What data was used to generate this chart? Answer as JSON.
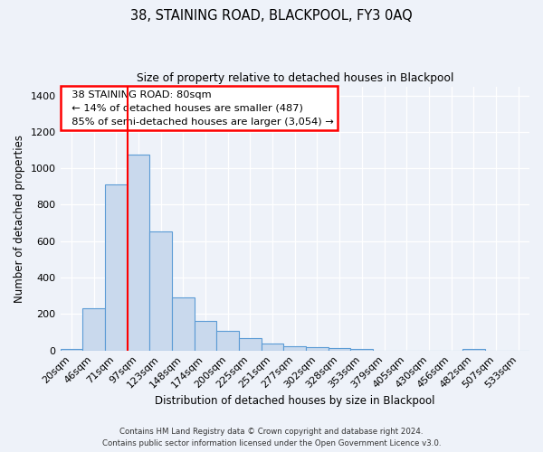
{
  "title": "38, STAINING ROAD, BLACKPOOL, FY3 0AQ",
  "subtitle": "Size of property relative to detached houses in Blackpool",
  "xlabel": "Distribution of detached houses by size in Blackpool",
  "ylabel": "Number of detached properties",
  "bar_color": "#c9d9ed",
  "bar_edge_color": "#5b9bd5",
  "background_color": "#eef2f9",
  "categories": [
    "20sqm",
    "46sqm",
    "71sqm",
    "97sqm",
    "123sqm",
    "148sqm",
    "174sqm",
    "200sqm",
    "225sqm",
    "251sqm",
    "277sqm",
    "302sqm",
    "328sqm",
    "353sqm",
    "379sqm",
    "405sqm",
    "430sqm",
    "456sqm",
    "482sqm",
    "507sqm",
    "533sqm"
  ],
  "values": [
    10,
    230,
    910,
    1075,
    655,
    290,
    160,
    105,
    70,
    40,
    25,
    20,
    15,
    10,
    0,
    0,
    0,
    0,
    10,
    0,
    0
  ],
  "ylim": [
    0,
    1450
  ],
  "yticks": [
    0,
    200,
    400,
    600,
    800,
    1000,
    1200,
    1400
  ],
  "property_line_x": 2.5,
  "annotation_title": "38 STAINING ROAD: 80sqm",
  "annotation_line1": "← 14% of detached houses are smaller (487)",
  "annotation_line2": "85% of semi-detached houses are larger (3,054) →",
  "footnote1": "Contains HM Land Registry data © Crown copyright and database right 2024.",
  "footnote2": "Contains public sector information licensed under the Open Government Licence v3.0."
}
